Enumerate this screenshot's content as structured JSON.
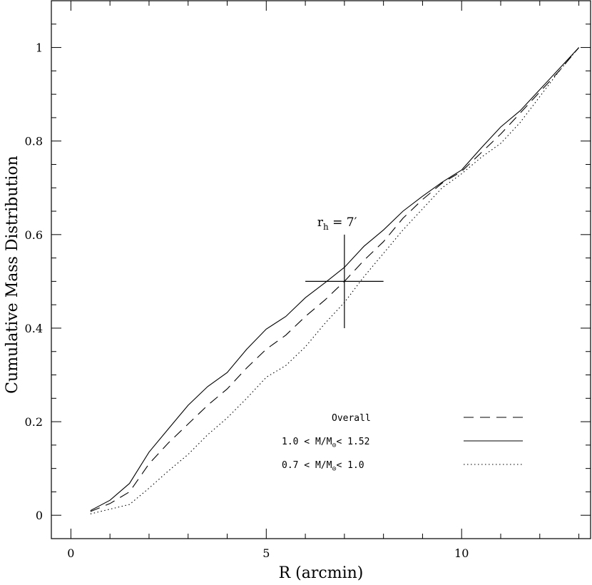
{
  "chart_data": {
    "type": "line",
    "xlabel": "R (arcmin)",
    "ylabel": "Cumulative Mass Distribution",
    "xlim": [
      -0.5,
      13.3
    ],
    "ylim": [
      -0.05,
      1.1
    ],
    "x_ticks": [
      0,
      5,
      10
    ],
    "y_ticks": [
      0,
      0.2,
      0.4,
      0.6,
      0.8,
      1
    ],
    "y_tick_labels": [
      "0",
      "0.2",
      "0.4",
      "0.6",
      "0.8",
      "1"
    ],
    "grid": false,
    "legend_position": "bottom-right",
    "annotation": {
      "text_main": "r",
      "text_sub": "h",
      "text_rest": " = 7′",
      "x": 7,
      "y": 0.5,
      "x_bar": [
        6,
        8
      ],
      "y_bar": [
        0.4,
        0.6
      ]
    },
    "series": [
      {
        "name": "Overall",
        "style": "dashed",
        "x": [
          0.5,
          1.0,
          1.5,
          2.0,
          2.5,
          3.0,
          3.5,
          4.0,
          4.5,
          5.0,
          5.5,
          6.0,
          6.5,
          7.0,
          7.5,
          8.0,
          8.5,
          9.0,
          9.5,
          10.0,
          10.5,
          11.0,
          11.5,
          12.0,
          12.5,
          13.0
        ],
        "y": [
          0.008,
          0.025,
          0.05,
          0.11,
          0.155,
          0.195,
          0.235,
          0.27,
          0.315,
          0.355,
          0.385,
          0.425,
          0.46,
          0.5,
          0.545,
          0.585,
          0.635,
          0.675,
          0.71,
          0.735,
          0.775,
          0.815,
          0.86,
          0.905,
          0.95,
          1.0
        ]
      },
      {
        "name": "1.0 < M/M⊙< 1.52",
        "label_prefix": "1.0 < M/M",
        "label_sub": "⊙",
        "label_suffix": "< 1.52",
        "style": "solid",
        "x": [
          0.5,
          1.0,
          1.5,
          2.0,
          2.5,
          3.0,
          3.5,
          4.0,
          4.5,
          5.0,
          5.5,
          6.0,
          6.5,
          7.0,
          7.5,
          8.0,
          8.5,
          9.0,
          9.5,
          10.0,
          10.5,
          11.0,
          11.5,
          12.0,
          12.5,
          13.0
        ],
        "y": [
          0.01,
          0.032,
          0.068,
          0.135,
          0.185,
          0.235,
          0.275,
          0.305,
          0.355,
          0.398,
          0.425,
          0.465,
          0.497,
          0.53,
          0.575,
          0.61,
          0.65,
          0.682,
          0.712,
          0.738,
          0.785,
          0.83,
          0.865,
          0.91,
          0.955,
          1.0
        ]
      },
      {
        "name": "0.7 < M/M⊙< 1.0",
        "label_prefix": "0.7 < M/M",
        "label_sub": "⊙",
        "label_suffix": "< 1.0",
        "style": "dotted",
        "x": [
          0.5,
          1.0,
          1.5,
          2.0,
          2.5,
          3.0,
          3.5,
          4.0,
          4.5,
          5.0,
          5.5,
          6.0,
          6.5,
          7.0,
          7.5,
          8.0,
          8.5,
          9.0,
          9.5,
          10.0,
          10.5,
          11.0,
          11.5,
          12.0,
          12.5,
          13.0
        ],
        "y": [
          0.003,
          0.013,
          0.023,
          0.058,
          0.095,
          0.13,
          0.172,
          0.208,
          0.25,
          0.295,
          0.32,
          0.36,
          0.41,
          0.455,
          0.51,
          0.56,
          0.61,
          0.655,
          0.7,
          0.73,
          0.765,
          0.795,
          0.84,
          0.895,
          0.95,
          1.0
        ]
      }
    ]
  }
}
